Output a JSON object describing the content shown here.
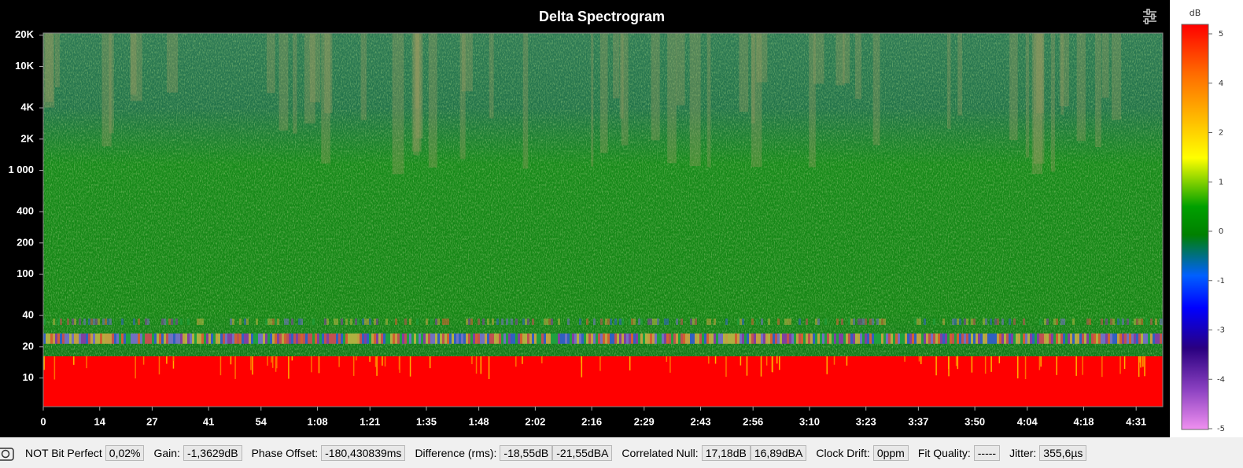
{
  "spectrogram": {
    "title": "Delta Spectrogram",
    "y_scale": "log",
    "ylim": [
      5.3,
      21000
    ],
    "yticks": [
      {
        "value": 20000,
        "label": "20K"
      },
      {
        "value": 10000,
        "label": "10K"
      },
      {
        "value": 4000,
        "label": "4K"
      },
      {
        "value": 2000,
        "label": "2K"
      },
      {
        "value": 1000,
        "label": "1 000"
      },
      400,
      200,
      100,
      40,
      20,
      10
    ],
    "xlim": [
      0,
      277.6
    ],
    "xticks": [
      0,
      14,
      27,
      41,
      54,
      {
        "value": 68,
        "label": "1:08"
      },
      {
        "value": 81,
        "label": "1:21"
      },
      {
        "value": 95,
        "label": "1:35"
      },
      {
        "value": 108,
        "label": "1:48"
      },
      {
        "value": 122,
        "label": "2:02"
      },
      {
        "value": 136,
        "label": "2:16"
      },
      {
        "value": 149,
        "label": "2:29"
      },
      {
        "value": 163,
        "label": "2:43"
      },
      {
        "value": 176,
        "label": "2:56"
      },
      {
        "value": 190,
        "label": "3:10"
      },
      {
        "value": 204,
        "label": "3:23"
      },
      {
        "value": 217,
        "label": "3:37"
      },
      {
        "value": 231,
        "label": "3:50"
      },
      {
        "value": 244,
        "label": "4:04"
      },
      {
        "value": 258,
        "label": "4:18"
      },
      {
        "value": 271,
        "label": "4:31"
      }
    ],
    "colorbar": {
      "label": "dB",
      "clim": [
        -5,
        5
      ],
      "ticks": [
        5,
        {
          "value": 3.75,
          "label": "4"
        },
        {
          "value": 2.5,
          "label": "2"
        },
        {
          "value": 1.25,
          "label": "1"
        },
        0,
        {
          "value": -1.25,
          "label": "-1"
        },
        {
          "value": -2.5,
          "label": "-3"
        },
        {
          "value": -3.75,
          "label": "-4"
        },
        -5
      ]
    }
  },
  "status_bar": {
    "bit_perfect": {
      "label": "NOT Bit Perfect",
      "value": "0,02%"
    },
    "gain": {
      "label": "Gain:",
      "value": "-1,3629dB"
    },
    "phase_offset": {
      "label": "Phase Offset:",
      "value": "-180,430839ms"
    },
    "difference": {
      "label": "Difference (rms):",
      "value": "-18,55dB",
      "value_a": "-21,55dBA"
    },
    "correlated_null": {
      "label": "Correlated Null:",
      "value": "17,18dB",
      "value_a": "16,89dBA"
    },
    "clock_drift": {
      "label": "Clock Drift:",
      "value": "0ppm"
    },
    "fit_quality": {
      "label": "Fit Quality:",
      "value": "-----"
    },
    "jitter": {
      "label": "Jitter:",
      "value": "355,6µs"
    }
  }
}
